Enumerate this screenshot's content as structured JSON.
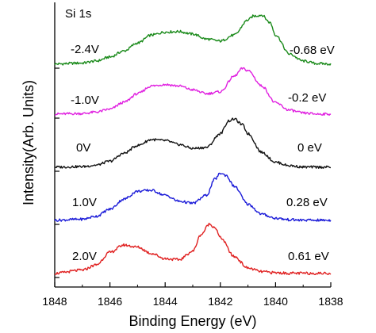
{
  "chart_data": {
    "type": "line",
    "title": "",
    "panel_label": "Si 1s",
    "xlabel": "Binding Energy (eV)",
    "ylabel": "Intensity(Arb. Units)",
    "xlim": [
      1848,
      1838
    ],
    "x_reversed": true,
    "x_ticks": [
      "1848",
      "1846",
      "1844",
      "1842",
      "1840",
      "1838"
    ],
    "y_scale": "stacked-offset, arbitrary units",
    "grid": false,
    "legend": "none",
    "series": [
      {
        "name": "-2.4V",
        "shift_label": "-0.68 eV",
        "color": "#1a8a1a",
        "x": [
          1848,
          1847,
          1846.5,
          1846,
          1845.5,
          1845,
          1844.5,
          1844,
          1843.5,
          1843,
          1842.5,
          1842,
          1841.5,
          1841,
          1840.8,
          1840.5,
          1840.2,
          1840,
          1839.5,
          1839,
          1838.5,
          1838
        ],
        "y": [
          0.02,
          0.04,
          0.08,
          0.16,
          0.28,
          0.44,
          0.6,
          0.66,
          0.67,
          0.62,
          0.52,
          0.48,
          0.6,
          0.9,
          0.98,
          1.0,
          0.85,
          0.6,
          0.22,
          0.08,
          0.03,
          0.02
        ]
      },
      {
        "name": "-1.0V",
        "shift_label": "-0.2 eV",
        "color": "#e020e0",
        "x": [
          1848,
          1847,
          1846.5,
          1846,
          1845.5,
          1845,
          1844.5,
          1844,
          1843.5,
          1843,
          1842.5,
          1842,
          1841.5,
          1841.2,
          1841,
          1840.5,
          1840,
          1839.5,
          1839,
          1838.5,
          1838
        ],
        "y": [
          0.02,
          0.03,
          0.06,
          0.12,
          0.26,
          0.44,
          0.6,
          0.63,
          0.6,
          0.52,
          0.44,
          0.48,
          0.8,
          0.96,
          0.92,
          0.6,
          0.25,
          0.1,
          0.04,
          0.02,
          0.02
        ]
      },
      {
        "name": "0V",
        "shift_label": "0 eV",
        "color": "#111111",
        "x": [
          1848,
          1847,
          1846.5,
          1846,
          1845.5,
          1845,
          1844.5,
          1844,
          1843.5,
          1843,
          1842.5,
          1842,
          1841.7,
          1841.5,
          1841.2,
          1841,
          1840.5,
          1840,
          1839.5,
          1839,
          1838.5,
          1838
        ],
        "y": [
          0.02,
          0.03,
          0.06,
          0.14,
          0.3,
          0.46,
          0.58,
          0.56,
          0.48,
          0.4,
          0.42,
          0.7,
          0.96,
          1.0,
          0.88,
          0.7,
          0.32,
          0.12,
          0.05,
          0.02,
          0.02,
          0.02
        ]
      },
      {
        "name": "1.0V",
        "shift_label": "0.28 eV",
        "color": "#1a1ad8",
        "x": [
          1848,
          1847,
          1846.5,
          1846,
          1845.5,
          1845,
          1844.5,
          1844,
          1843.5,
          1843,
          1842.5,
          1842.2,
          1842,
          1841.8,
          1841.5,
          1841,
          1840.5,
          1840,
          1839.5,
          1839,
          1838.5,
          1838
        ],
        "y": [
          0.02,
          0.04,
          0.1,
          0.24,
          0.44,
          0.6,
          0.62,
          0.52,
          0.4,
          0.36,
          0.52,
          0.84,
          0.96,
          0.92,
          0.7,
          0.34,
          0.14,
          0.06,
          0.03,
          0.02,
          0.02,
          0.02
        ]
      },
      {
        "name": "2.0V",
        "shift_label": "0.61 eV",
        "color": "#e02020",
        "x": [
          1848,
          1847,
          1846.5,
          1846,
          1845.5,
          1845,
          1844.5,
          1844,
          1843.5,
          1843,
          1842.7,
          1842.4,
          1842.2,
          1842,
          1841.5,
          1841,
          1840.5,
          1840,
          1839.5,
          1839,
          1838.5,
          1838
        ],
        "y": [
          0.02,
          0.08,
          0.18,
          0.42,
          0.56,
          0.52,
          0.4,
          0.3,
          0.28,
          0.44,
          0.76,
          0.96,
          0.9,
          0.7,
          0.34,
          0.12,
          0.05,
          0.03,
          0.02,
          0.02,
          0.02,
          0.02
        ]
      }
    ]
  }
}
